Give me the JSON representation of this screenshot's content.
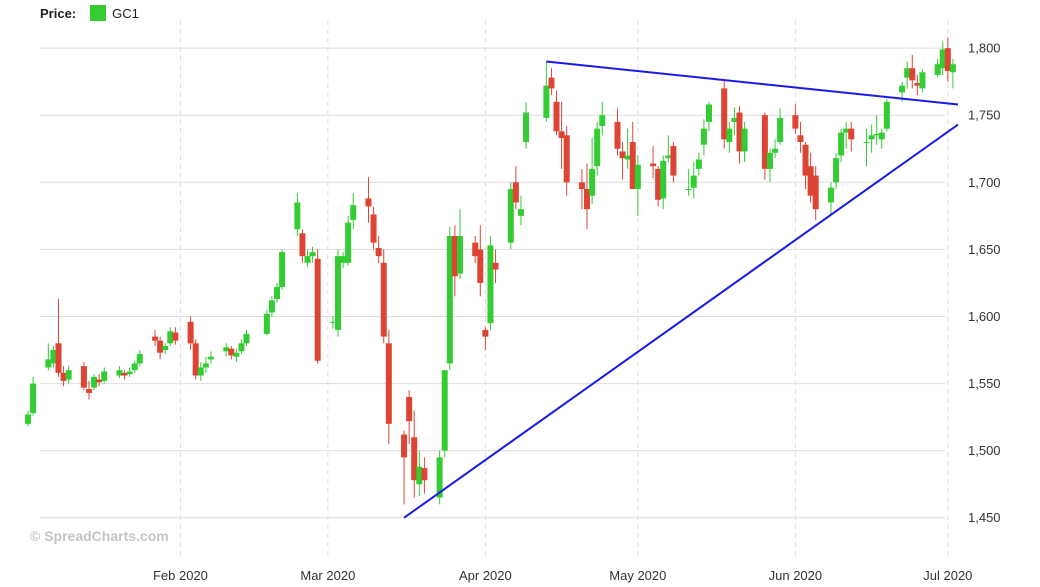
{
  "legend": {
    "label": "Price:",
    "series_name": "GC1",
    "swatch_color": "#33cc33"
  },
  "watermark": "© SpreadCharts.com",
  "colors": {
    "up": "#33cc33",
    "down": "#dd4433",
    "trend": "#1a1ae6",
    "grid": "#dddddd"
  },
  "chart_data": {
    "type": "candlestick",
    "title": "",
    "xlabel": "",
    "ylabel": "",
    "ylim": [
      1420,
      1815
    ],
    "y_ticks": [
      1450,
      1500,
      1550,
      1600,
      1650,
      1700,
      1750,
      1800
    ],
    "y_tick_labels": [
      "1,450",
      "1,500",
      "1,550",
      "1,600",
      "1,650",
      "1,700",
      "1,750",
      "1,800"
    ],
    "x_ticks": [
      {
        "date": "2020-02-01",
        "label": "Feb 2020"
      },
      {
        "date": "2020-03-01",
        "label": "Mar 2020"
      },
      {
        "date": "2020-04-01",
        "label": "Apr 2020"
      },
      {
        "date": "2020-05-01",
        "label": "May 2020"
      },
      {
        "date": "2020-06-01",
        "label": "Jun 2020"
      },
      {
        "date": "2020-07-01",
        "label": "Jul 2020"
      }
    ],
    "xlim": [
      "2020-01-02",
      "2020-07-03"
    ],
    "grid": true,
    "legend_position": "top-left",
    "candles": [
      [
        "2020-01-02",
        1520,
        1530,
        1518,
        1527
      ],
      [
        "2020-01-03",
        1528,
        1555,
        1526,
        1550
      ],
      [
        "2020-01-06",
        1562,
        1580,
        1560,
        1568
      ],
      [
        "2020-01-07",
        1565,
        1578,
        1562,
        1575
      ],
      [
        "2020-01-08",
        1580,
        1613,
        1555,
        1558
      ],
      [
        "2020-01-09",
        1558,
        1563,
        1548,
        1552
      ],
      [
        "2020-01-10",
        1553,
        1563,
        1550,
        1560
      ],
      [
        "2020-01-13",
        1563,
        1566,
        1545,
        1547
      ],
      [
        "2020-01-14",
        1546,
        1552,
        1538,
        1543
      ],
      [
        "2020-01-15",
        1547,
        1557,
        1545,
        1555
      ],
      [
        "2020-01-16",
        1553,
        1557,
        1548,
        1551
      ],
      [
        "2020-01-17",
        1552,
        1562,
        1550,
        1559
      ],
      [
        "2020-01-20",
        1556,
        1563,
        1554,
        1560
      ],
      [
        "2020-01-21",
        1558,
        1560,
        1553,
        1556
      ],
      [
        "2020-01-22",
        1557,
        1562,
        1555,
        1559
      ],
      [
        "2020-01-23",
        1560,
        1567,
        1558,
        1565
      ],
      [
        "2020-01-24",
        1565,
        1575,
        1563,
        1572
      ],
      [
        "2020-01-27",
        1585,
        1590,
        1578,
        1582
      ],
      [
        "2020-01-28",
        1582,
        1585,
        1568,
        1573
      ],
      [
        "2020-01-29",
        1575,
        1580,
        1572,
        1578
      ],
      [
        "2020-01-30",
        1580,
        1592,
        1578,
        1589
      ],
      [
        "2020-01-31",
        1588,
        1592,
        1579,
        1582
      ],
      [
        "2020-02-03",
        1596,
        1600,
        1575,
        1580
      ],
      [
        "2020-02-04",
        1580,
        1583,
        1553,
        1556
      ],
      [
        "2020-02-05",
        1556,
        1566,
        1552,
        1562
      ],
      [
        "2020-02-06",
        1562,
        1570,
        1558,
        1565
      ],
      [
        "2020-02-07",
        1568,
        1574,
        1565,
        1570
      ],
      [
        "2020-02-10",
        1574,
        1580,
        1570,
        1577
      ],
      [
        "2020-02-11",
        1576,
        1578,
        1568,
        1571
      ],
      [
        "2020-02-12",
        1570,
        1576,
        1566,
        1573
      ],
      [
        "2020-02-13",
        1574,
        1583,
        1572,
        1580
      ],
      [
        "2020-02-14",
        1580,
        1590,
        1578,
        1587
      ],
      [
        "2020-02-18",
        1587,
        1605,
        1586,
        1602
      ],
      [
        "2020-02-19",
        1603,
        1615,
        1600,
        1612
      ],
      [
        "2020-02-20",
        1613,
        1625,
        1610,
        1622
      ],
      [
        "2020-02-21",
        1622,
        1650,
        1620,
        1648
      ],
      [
        "2020-02-24",
        1665,
        1692,
        1660,
        1685
      ],
      [
        "2020-02-25",
        1662,
        1665,
        1640,
        1645
      ],
      [
        "2020-02-26",
        1640,
        1650,
        1637,
        1645
      ],
      [
        "2020-02-27",
        1645,
        1652,
        1640,
        1648
      ],
      [
        "2020-02-28",
        1643,
        1650,
        1565,
        1567
      ],
      [
        "2020-03-02",
        1596,
        1600,
        1591,
        1596
      ],
      [
        "2020-03-03",
        1590,
        1650,
        1585,
        1645
      ],
      [
        "2020-03-04",
        1640,
        1648,
        1636,
        1645
      ],
      [
        "2020-03-05",
        1640,
        1675,
        1638,
        1670
      ],
      [
        "2020-03-06",
        1672,
        1692,
        1665,
        1683
      ],
      [
        "2020-03-09",
        1688,
        1704,
        1670,
        1682
      ],
      [
        "2020-03-10",
        1676,
        1682,
        1650,
        1655
      ],
      [
        "2020-03-11",
        1651,
        1660,
        1640,
        1645
      ],
      [
        "2020-03-12",
        1640,
        1650,
        1580,
        1585
      ],
      [
        "2020-03-13",
        1580,
        1590,
        1505,
        1520
      ],
      [
        "2020-03-16",
        1512,
        1515,
        1460,
        1495
      ],
      [
        "2020-03-17",
        1540,
        1545,
        1505,
        1522
      ],
      [
        "2020-03-18",
        1510,
        1530,
        1465,
        1478
      ],
      [
        "2020-03-19",
        1475,
        1500,
        1466,
        1488
      ],
      [
        "2020-03-20",
        1487,
        1495,
        1468,
        1478
      ],
      [
        "2020-03-23",
        1465,
        1500,
        1460,
        1495
      ],
      [
        "2020-03-24",
        1500,
        1560,
        1495,
        1560
      ],
      [
        "2020-03-25",
        1565,
        1667,
        1560,
        1660
      ],
      [
        "2020-03-26",
        1660,
        1668,
        1615,
        1630
      ],
      [
        "2020-03-27",
        1632,
        1680,
        1628,
        1660
      ],
      [
        "2020-03-30",
        1655,
        1660,
        1640,
        1645
      ],
      [
        "2020-03-31",
        1650,
        1668,
        1615,
        1625
      ],
      [
        "2020-04-01",
        1590,
        1592,
        1575,
        1585
      ],
      [
        "2020-04-02",
        1595,
        1660,
        1590,
        1653
      ],
      [
        "2020-04-03",
        1640,
        1650,
        1625,
        1635
      ],
      [
        "2020-04-06",
        1655,
        1700,
        1650,
        1695
      ],
      [
        "2020-04-07",
        1700,
        1712,
        1680,
        1685
      ],
      [
        "2020-04-08",
        1675,
        1690,
        1668,
        1680
      ],
      [
        "2020-04-09",
        1730,
        1760,
        1725,
        1752
      ],
      [
        "2020-04-13",
        1748,
        1790,
        1745,
        1772
      ],
      [
        "2020-04-14",
        1778,
        1785,
        1765,
        1770
      ],
      [
        "2020-04-15",
        1760,
        1768,
        1735,
        1738
      ],
      [
        "2020-04-16",
        1738,
        1760,
        1710,
        1733
      ],
      [
        "2020-04-17",
        1735,
        1742,
        1690,
        1700
      ],
      [
        "2020-04-20",
        1700,
        1710,
        1680,
        1695
      ],
      [
        "2020-04-21",
        1695,
        1714,
        1665,
        1680
      ],
      [
        "2020-04-22",
        1690,
        1733,
        1684,
        1710
      ],
      [
        "2020-04-23",
        1712,
        1745,
        1705,
        1740
      ],
      [
        "2020-04-24",
        1742,
        1760,
        1735,
        1750
      ],
      [
        "2020-04-27",
        1745,
        1755,
        1720,
        1725
      ],
      [
        "2020-04-28",
        1723,
        1730,
        1702,
        1718
      ],
      [
        "2020-04-29",
        1717,
        1740,
        1710,
        1720
      ],
      [
        "2020-04-30",
        1730,
        1745,
        1695,
        1695
      ],
      [
        "2020-05-01",
        1695,
        1720,
        1675,
        1713
      ],
      [
        "2020-05-04",
        1714,
        1727,
        1703,
        1712
      ],
      [
        "2020-05-05",
        1710,
        1712,
        1682,
        1687
      ],
      [
        "2020-05-06",
        1688,
        1720,
        1680,
        1716
      ],
      [
        "2020-05-07",
        1718,
        1735,
        1715,
        1720
      ],
      [
        "2020-05-08",
        1727,
        1730,
        1700,
        1705
      ],
      [
        "2020-05-11",
        1695,
        1710,
        1690,
        1695
      ],
      [
        "2020-05-12",
        1696,
        1715,
        1688,
        1705
      ],
      [
        "2020-05-13",
        1710,
        1722,
        1705,
        1717
      ],
      [
        "2020-05-14",
        1728,
        1747,
        1720,
        1740
      ],
      [
        "2020-05-15",
        1745,
        1760,
        1738,
        1758
      ],
      [
        "2020-05-18",
        1770,
        1776,
        1725,
        1732
      ],
      [
        "2020-05-19",
        1730,
        1745,
        1722,
        1740
      ],
      [
        "2020-05-20",
        1745,
        1756,
        1735,
        1748
      ],
      [
        "2020-05-21",
        1752,
        1757,
        1714,
        1723
      ],
      [
        "2020-05-22",
        1723,
        1745,
        1715,
        1740
      ],
      [
        "2020-05-26",
        1750,
        1752,
        1702,
        1710
      ],
      [
        "2020-05-27",
        1710,
        1725,
        1700,
        1722
      ],
      [
        "2020-05-28",
        1722,
        1732,
        1718,
        1725
      ],
      [
        "2020-05-29",
        1730,
        1755,
        1728,
        1748
      ],
      [
        "2020-06-01",
        1750,
        1758,
        1736,
        1740
      ],
      [
        "2020-06-02",
        1735,
        1745,
        1722,
        1730
      ],
      [
        "2020-06-03",
        1728,
        1730,
        1695,
        1705
      ],
      [
        "2020-06-04",
        1712,
        1722,
        1685,
        1690
      ],
      [
        "2020-06-05",
        1705,
        1712,
        1672,
        1680
      ],
      [
        "2020-06-08",
        1685,
        1700,
        1675,
        1696
      ],
      [
        "2020-06-09",
        1700,
        1722,
        1695,
        1718
      ],
      [
        "2020-06-10",
        1720,
        1740,
        1715,
        1737
      ],
      [
        "2020-06-11",
        1737,
        1745,
        1725,
        1740
      ],
      [
        "2020-06-12",
        1740,
        1745,
        1723,
        1732
      ],
      [
        "2020-06-15",
        1730,
        1740,
        1712,
        1730
      ],
      [
        "2020-06-16",
        1732,
        1743,
        1722,
        1735
      ],
      [
        "2020-06-17",
        1735,
        1750,
        1728,
        1736
      ],
      [
        "2020-06-18",
        1732,
        1740,
        1725,
        1737
      ],
      [
        "2020-06-19",
        1740,
        1762,
        1738,
        1760
      ],
      [
        "2020-06-22",
        1767,
        1775,
        1760,
        1772
      ],
      [
        "2020-06-23",
        1778,
        1790,
        1770,
        1785
      ],
      [
        "2020-06-24",
        1785,
        1795,
        1770,
        1776
      ],
      [
        "2020-06-25",
        1774,
        1780,
        1765,
        1772
      ],
      [
        "2020-06-26",
        1770,
        1784,
        1767,
        1782
      ],
      [
        "2020-06-29",
        1780,
        1792,
        1778,
        1788
      ],
      [
        "2020-06-30",
        1785,
        1805,
        1780,
        1799
      ],
      [
        "2020-07-01",
        1800,
        1808,
        1775,
        1783
      ],
      [
        "2020-07-02",
        1782,
        1792,
        1770,
        1788
      ]
    ],
    "trendlines": [
      {
        "from": [
          "2020-03-16",
          1450
        ],
        "to": [
          "2020-07-03",
          1743
        ]
      },
      {
        "from": [
          "2020-04-13",
          1790
        ],
        "to": [
          "2020-07-03",
          1758
        ]
      }
    ]
  }
}
